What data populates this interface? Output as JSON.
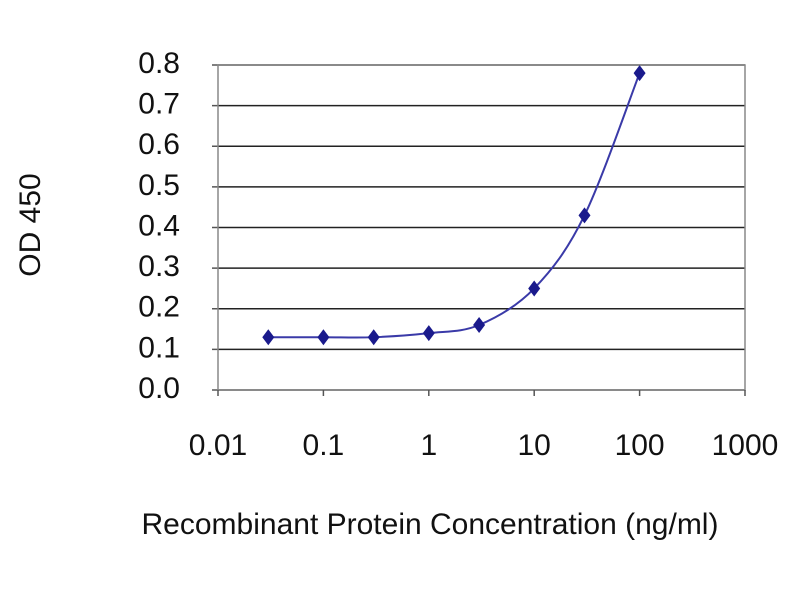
{
  "chart_data": {
    "type": "line",
    "x_label": "Recombinant Protein Concentration  (ng/ml)",
    "y_label": "OD 450",
    "x": [
      0.03,
      0.1,
      0.3,
      1,
      3,
      10,
      30,
      100
    ],
    "values": [
      0.13,
      0.13,
      0.13,
      0.14,
      0.16,
      0.25,
      0.43,
      0.78
    ],
    "color": "#1a1a8c",
    "line_color": "#3a3aa8",
    "xscale": "log",
    "xlim": [
      0.01,
      1000
    ],
    "xticks": [
      0.01,
      0.1,
      1,
      10,
      100,
      1000
    ],
    "ylim": [
      0,
      0.8
    ],
    "yticks": [
      {
        "value": 0,
        "label": "0.0"
      },
      0.1,
      0.2,
      0.3,
      0.4,
      0.5,
      0.6,
      0.7,
      0.8
    ],
    "grid": true
  }
}
